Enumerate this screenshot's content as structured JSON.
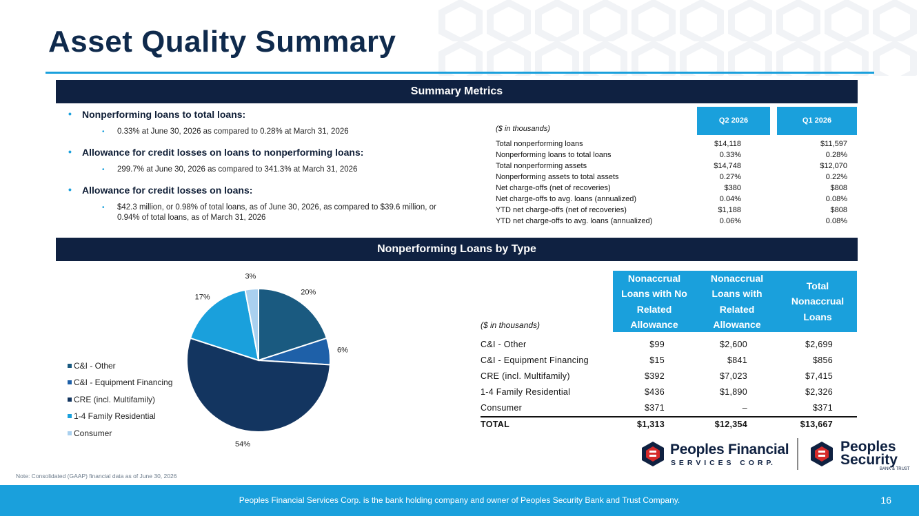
{
  "title": "Asset Quality Summary",
  "summary_band": "Summary Metrics",
  "npl_band": "Nonperforming Loans by Type",
  "bullets": [
    {
      "heading": "Nonperforming loans to total loans:",
      "detail": "0.33% at June 30, 2026 as compared to 0.28% at March 31, 2026"
    },
    {
      "heading": "Allowance for credit losses on loans to nonperforming loans:",
      "detail": "299.7% at June 30, 2026 as compared to 341.3% at March 31, 2026"
    },
    {
      "heading": "Allowance for credit losses on loans:",
      "detail": "$42.3 million, or 0.98% of total loans, as of June 30, 2026, as compared to $39.6 million, or 0.94% of total loans, as of March 31, 2026"
    }
  ],
  "metrics": {
    "units": "($ in thousands)",
    "headers": [
      "Q2 2026",
      "Q1 2026"
    ],
    "rows": [
      {
        "label": "Total nonperforming loans",
        "q2": "$14,118",
        "q1": "$11,597"
      },
      {
        "label": "Nonperforming loans to total loans",
        "q2": "0.33%",
        "q1": "0.28%"
      },
      {
        "label": "Total nonperforming assets",
        "q2": "$14,748",
        "q1": "$12,070"
      },
      {
        "label": "Nonperforming assets to total assets",
        "q2": "0.27%",
        "q1": "0.22%"
      },
      {
        "label": "Net charge-offs (net of recoveries)",
        "q2": "$380",
        "q1": "$808"
      },
      {
        "label": "Net charge-offs to avg. loans (annualized)",
        "q2": "0.04%",
        "q1": "0.08%"
      },
      {
        "label": "YTD net charge-offs (net of recoveries)",
        "q2": "$1,188",
        "q1": "$808"
      },
      {
        "label": "YTD net charge-offs to avg. loans (annualized)",
        "q2": "0.06%",
        "q1": "0.08%"
      }
    ]
  },
  "chart_data": {
    "type": "pie",
    "categories": [
      "C&I - Other",
      "C&I - Equipment Financing",
      "CRE (incl. Multifamily)",
      "1-4 Family Residential",
      "Consumer"
    ],
    "values": [
      20,
      6,
      54,
      17,
      3
    ],
    "data_labels": [
      "20%",
      "6%",
      "54%",
      "17%",
      "3%"
    ],
    "colors": [
      "#1a5a80",
      "#1e60a8",
      "#133560",
      "#1aa0dc",
      "#a9d0ef"
    ],
    "legend_position": "left"
  },
  "npl_table": {
    "units": "($ in thousands)",
    "headers": [
      "Nonaccrual Loans with No Related Allowance",
      "Nonaccrual Loans with Related Allowance",
      "Total Nonaccrual Loans"
    ],
    "rows": [
      {
        "label": "C&I - Other",
        "c1": "$99",
        "c2": "$2,600",
        "c3": "$2,699"
      },
      {
        "label": "C&I - Equipment Financing",
        "c1": "$15",
        "c2": "$841",
        "c3": "$856"
      },
      {
        "label": "CRE (incl. Multifamily)",
        "c1": "$392",
        "c2": "$7,023",
        "c3": "$7,415"
      },
      {
        "label": "1-4 Family Residential",
        "c1": "$436",
        "c2": "$1,890",
        "c3": "$2,326"
      },
      {
        "label": "Consumer",
        "c1": "$371",
        "c2": "–",
        "c3": "$371"
      }
    ],
    "total": {
      "label": "TOTAL",
      "c1": "$1,313",
      "c2": "$12,354",
      "c3": "$13,667"
    }
  },
  "logos": {
    "pfs_name": "Peoples Financial",
    "pfs_sub": "S E R V I C E S   C O R P.",
    "psb_name1": "Peoples",
    "psb_name2": "Security",
    "psb_sub": "BANK & TRUST"
  },
  "note": "Note: Consolidated (GAAP) financial data as of June 30, 2026",
  "footer": "Peoples Financial Services Corp. is the bank holding company and owner of Peoples Security Bank and Trust Company.",
  "page_number": "16"
}
